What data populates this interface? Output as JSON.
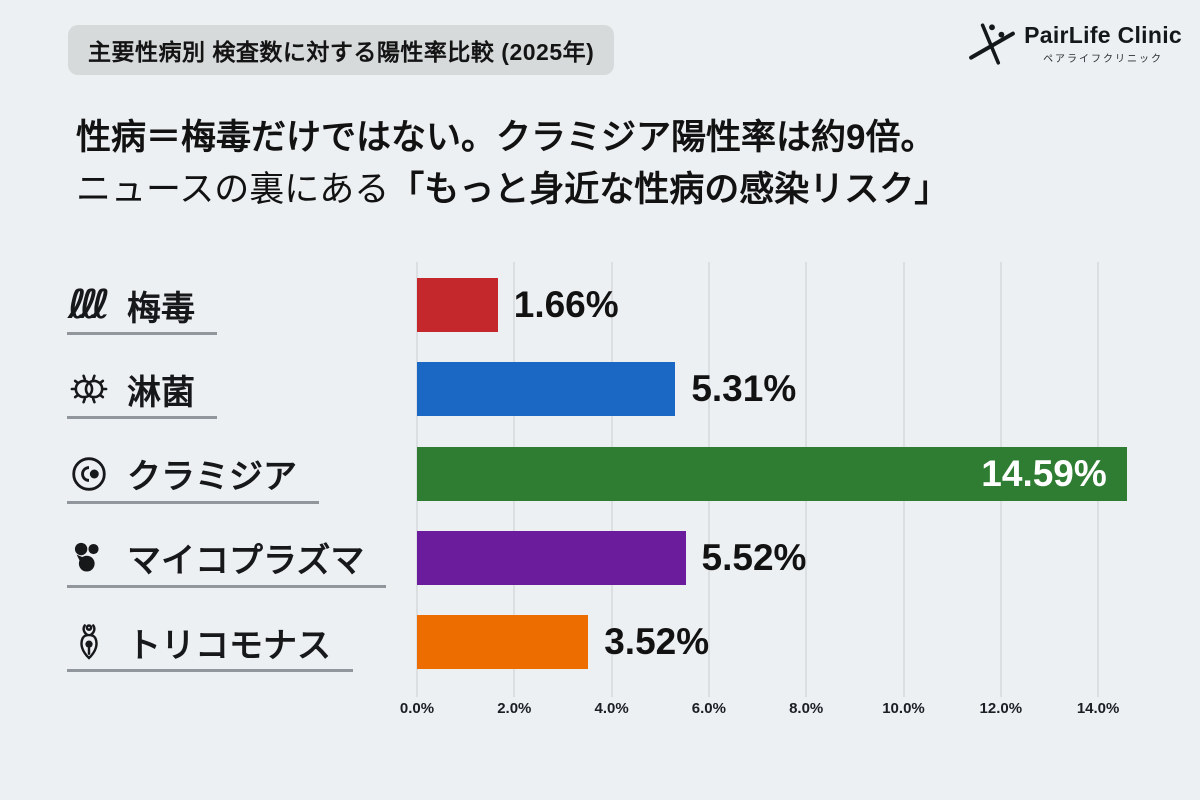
{
  "header": {
    "badge": "主要性病別 検査数に対する陽性率比較 (2025年)",
    "logo": {
      "name": "PairLife Clinic",
      "subtitle": "ペアライフクリニック"
    }
  },
  "headline": {
    "line1": "性病＝梅毒だけではない。クラミジア陽性率は約9倍。",
    "line2_regular": "ニュースの裏にある",
    "line2_bold": "「もっと身近な性病の感染リスク」"
  },
  "chart_data": {
    "type": "bar",
    "orientation": "horizontal",
    "title": "主要性病別 検査数に対する陽性率比較 (2025年)",
    "categories": [
      "梅毒",
      "淋菌",
      "クラミジア",
      "マイコプラズマ",
      "トリコモナス"
    ],
    "values": [
      1.66,
      5.31,
      14.59,
      5.52,
      3.52
    ],
    "value_labels": [
      "1.66%",
      "5.31%",
      "14.59%",
      "5.52%",
      "3.52%"
    ],
    "bar_colors": [
      "#c5282c",
      "#1b67c4",
      "#2e7d32",
      "#6a1c9c",
      "#ee6d00"
    ],
    "icons": [
      "spirochete-icon",
      "gonococcus-icon",
      "chlamydia-icon",
      "mycoplasma-icon",
      "trichomonas-icon"
    ],
    "value_label_inside": [
      false,
      false,
      true,
      false,
      false
    ],
    "x_ticks": [
      "0.0%",
      "2.0%",
      "4.0%",
      "6.0%",
      "8.0%",
      "10.0%",
      "12.0%",
      "14.0%"
    ],
    "x_tick_values": [
      0,
      2,
      4,
      6,
      8,
      10,
      12,
      14
    ],
    "xlim": [
      0,
      15.9
    ],
    "grid": true,
    "legend": false,
    "background": "#edf0f3"
  }
}
